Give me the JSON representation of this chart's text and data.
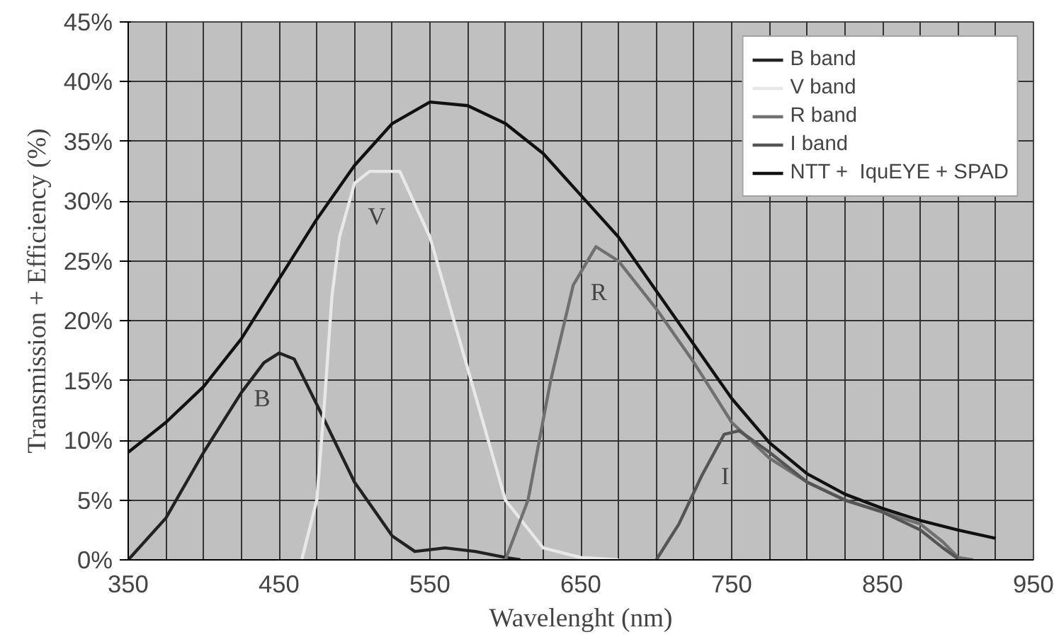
{
  "chart_data": {
    "type": "line",
    "xlabel": "Wavelenght (nm)",
    "ylabel": "Transmission + Efficiency (%)",
    "xlim": [
      350,
      950
    ],
    "ylim": [
      0,
      45
    ],
    "xticks": [
      350,
      {
        "value": 375,
        "label": null
      },
      {
        "value": 400,
        "label": null
      },
      {
        "value": 425,
        "label": null
      },
      450,
      {
        "value": 475,
        "label": null
      },
      {
        "value": 500,
        "label": null
      },
      {
        "value": 525,
        "label": null
      },
      550,
      {
        "value": 575,
        "label": null
      },
      {
        "value": 600,
        "label": null
      },
      {
        "value": 625,
        "label": null
      },
      650,
      {
        "value": 675,
        "label": null
      },
      {
        "value": 700,
        "label": null
      },
      {
        "value": 725,
        "label": null
      },
      750,
      {
        "value": 775,
        "label": null
      },
      {
        "value": 800,
        "label": null
      },
      {
        "value": 825,
        "label": null
      },
      850,
      {
        "value": 875,
        "label": null
      },
      {
        "value": 900,
        "label": null
      },
      {
        "value": 925,
        "label": null
      },
      950
    ],
    "yticks": [
      {
        "value": 0,
        "label": "0%"
      },
      {
        "value": 5,
        "label": "5%"
      },
      {
        "value": 10,
        "label": "10%"
      },
      {
        "value": 15,
        "label": "15%"
      },
      {
        "value": 20,
        "label": "20%"
      },
      {
        "value": 25,
        "label": "25%"
      },
      {
        "value": 30,
        "label": "30%"
      },
      {
        "value": 35,
        "label": "35%"
      },
      {
        "value": 40,
        "label": "40%"
      },
      {
        "value": 45,
        "label": "45%"
      }
    ],
    "grid": true,
    "legend": "top right",
    "marker": "none",
    "line_style": "solid",
    "series": [
      {
        "name": "B band",
        "color": "#222222",
        "x": [
          350,
          375,
          400,
          425,
          440,
          450,
          460,
          475,
          500,
          525,
          540,
          560,
          580,
          600,
          610
        ],
        "values": [
          0,
          3.5,
          9,
          14,
          16.5,
          17.3,
          16.8,
          13,
          6.5,
          2,
          0.7,
          1,
          0.7,
          0.2,
          0
        ]
      },
      {
        "name": "V band",
        "color": "#e8e8e8",
        "x": [
          465,
          475,
          480,
          485,
          490,
          500,
          510,
          530,
          550,
          575,
          600,
          625,
          650,
          675
        ],
        "values": [
          0,
          5,
          13,
          22,
          27,
          31.5,
          32.5,
          32.5,
          27,
          16,
          5,
          1,
          0.2,
          0
        ]
      },
      {
        "name": "R band",
        "color": "#707070",
        "x": [
          600,
          615,
          630,
          645,
          660,
          675,
          700,
          725,
          750,
          775,
          800,
          825,
          850,
          875,
          890,
          900,
          910
        ],
        "values": [
          0,
          5,
          15,
          23,
          26.2,
          25,
          21,
          16.5,
          11.5,
          8.5,
          6.5,
          5,
          4,
          3,
          1.5,
          0.2,
          0
        ]
      },
      {
        "name": "I band",
        "color": "#555555",
        "x": [
          700,
          715,
          730,
          745,
          755,
          775,
          800,
          825,
          850,
          875,
          890,
          900
        ],
        "values": [
          0,
          3,
          7,
          10.5,
          10.8,
          9,
          6.5,
          5,
          4,
          2.5,
          1,
          0.1
        ]
      },
      {
        "name": "NTT +  IquEYE + SPAD",
        "color": "#111111",
        "x": [
          350,
          375,
          400,
          425,
          450,
          475,
          500,
          525,
          550,
          575,
          600,
          625,
          650,
          675,
          700,
          725,
          750,
          775,
          800,
          825,
          850,
          875,
          900,
          925
        ],
        "values": [
          9,
          11.5,
          14.5,
          18.5,
          23.5,
          28.5,
          33,
          36.5,
          38.3,
          38,
          36.5,
          34,
          30.5,
          27,
          22.5,
          18,
          13.5,
          9.8,
          7.2,
          5.5,
          4.3,
          3.3,
          2.5,
          1.8
        ]
      }
    ],
    "annotations": [
      "B",
      "V",
      "R",
      "I"
    ]
  }
}
